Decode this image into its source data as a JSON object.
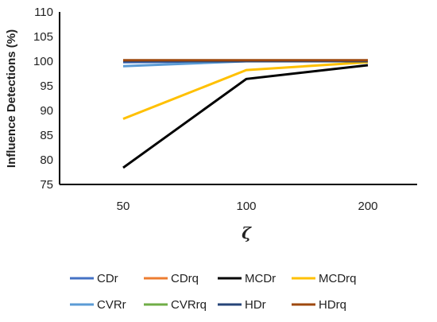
{
  "chart_data": {
    "type": "line",
    "categories": [
      "50",
      "100",
      "200"
    ],
    "xlabel": "ζ",
    "ylabel": "Influence Detections (%)",
    "ylim": [
      75,
      110
    ],
    "yticks": [
      75,
      80,
      85,
      90,
      95,
      100,
      105,
      110
    ],
    "grid": false,
    "legend_position": "bottom",
    "series": [
      {
        "name": "CDr",
        "color": "#4472C4",
        "values": [
          99.8,
          100,
          100
        ]
      },
      {
        "name": "CDrq",
        "color": "#ED7D31",
        "values": [
          100,
          100,
          100
        ]
      },
      {
        "name": "MCDr",
        "color": "#000000",
        "values": [
          78.4,
          96.4,
          99.2
        ]
      },
      {
        "name": "MCDrq",
        "color": "#FFC000",
        "values": [
          88.3,
          98.2,
          99.8
        ]
      },
      {
        "name": "CVRr",
        "color": "#5B9BD5",
        "values": [
          99,
          100,
          100
        ]
      },
      {
        "name": "CVRrq",
        "color": "#70AD47",
        "values": [
          100,
          100,
          100
        ]
      },
      {
        "name": "HDr",
        "color": "#264478",
        "values": [
          100,
          100,
          100
        ]
      },
      {
        "name": "HDrq",
        "color": "#9E480E",
        "values": [
          100.2,
          100.2,
          100.2
        ]
      }
    ]
  }
}
